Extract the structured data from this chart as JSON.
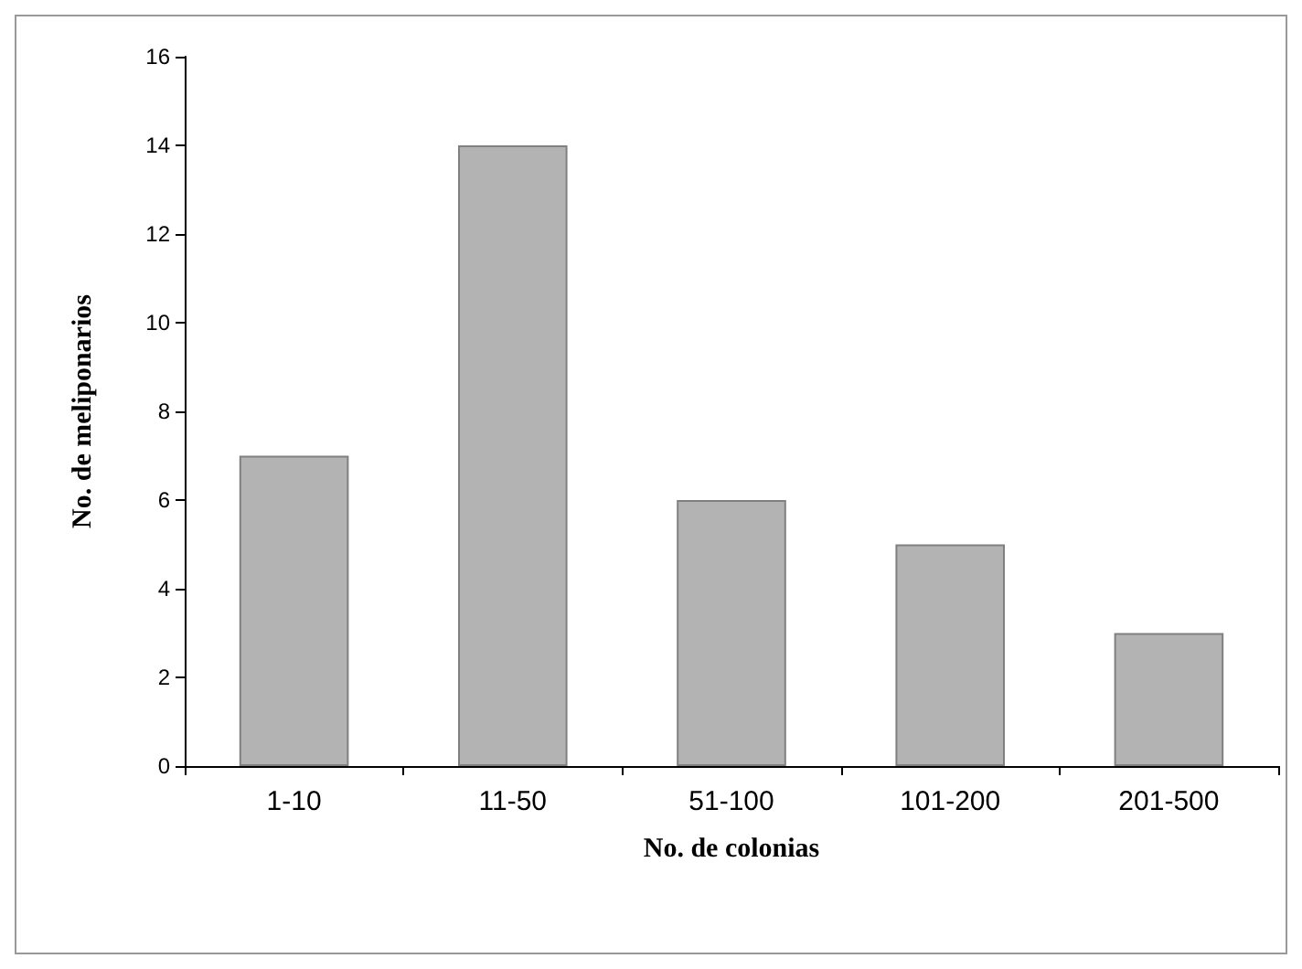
{
  "chart_data": {
    "type": "bar",
    "xlabel": "No. de colonias",
    "ylabel": "No. de meliponarios",
    "categories": [
      "1-10",
      "11-50",
      "51-100",
      "101-200",
      "201-500"
    ],
    "values": [
      7,
      14,
      6,
      5,
      3
    ],
    "color": "#b3b3b3",
    "ylim": [
      0,
      16
    ],
    "yticks": [
      0,
      2,
      4,
      6,
      8,
      10,
      12,
      14,
      16
    ],
    "grid": false
  }
}
